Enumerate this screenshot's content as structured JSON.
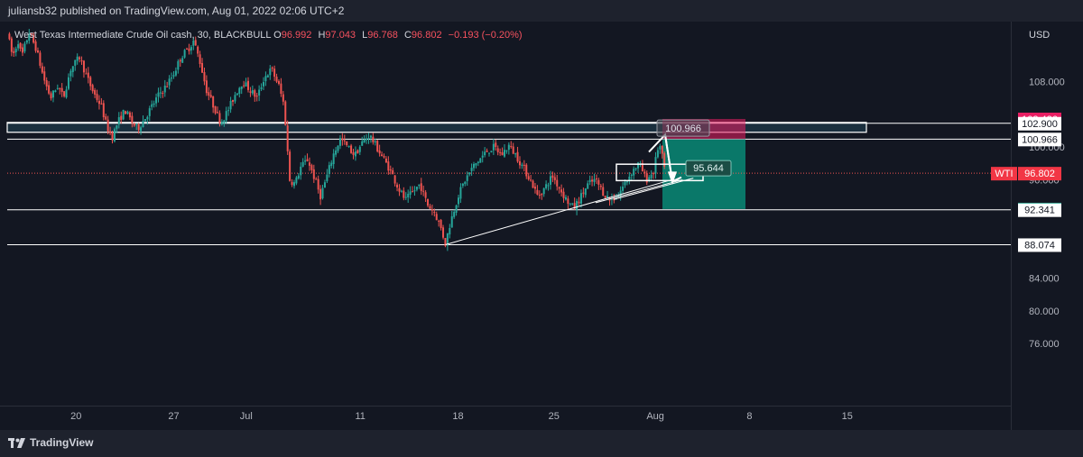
{
  "header": {
    "published": "juliansb32 published on TradingView.com, Aug 01, 2022 02:06 UTC+2"
  },
  "legend": {
    "symbol": "West Texas Intermediate Crude Oil cash, 30, BLACKBULL",
    "o_label": "O",
    "o_value": "96.992",
    "h_label": "H",
    "h_value": "97.043",
    "l_label": "L",
    "l_value": "96.768",
    "c_label": "C",
    "c_value": "96.802",
    "change": "−0.193 (−0.20%)"
  },
  "axis": {
    "currency": "USD"
  },
  "footer": {
    "brand": "TradingView"
  },
  "colors": {
    "up": "#26a69a",
    "down": "#ef5350",
    "bg": "#131722",
    "stop_zone": "#e91e63",
    "target_zone": "#089981",
    "zone_band": "#1e3a4a"
  },
  "chart_data": {
    "type": "candlestick",
    "symbol": "WTI",
    "timeframe": "30",
    "x_ticks": [
      "20",
      "27",
      "Jul",
      "11",
      "18",
      "25",
      "Aug",
      "8",
      "15"
    ],
    "y_ticks": [
      "76.000",
      "80.000",
      "84.000",
      "96.000",
      "100.000",
      "108.000"
    ],
    "ylim": [
      73.5,
      114
    ],
    "horizontal_levels": [
      102.9,
      100.966,
      92.341,
      88.074
    ],
    "zone": [
      101.8,
      103.0
    ],
    "price_tags": [
      {
        "value": "103.426",
        "style": "pink"
      },
      {
        "value": "102.900",
        "style": "white"
      },
      {
        "value": "101.023",
        "style": "dark"
      },
      {
        "value": "100.966",
        "style": "white"
      },
      {
        "value": "96.802",
        "style": "red",
        "name": "WTI"
      },
      {
        "value": "92.425",
        "style": "green"
      },
      {
        "value": "92.341",
        "style": "white"
      },
      {
        "value": "88.074",
        "style": "white"
      }
    ],
    "annotations": [
      "100.966",
      "95.644"
    ],
    "position": {
      "entry": 100.966,
      "stop": 103.426,
      "target": 92.425
    },
    "trendline": [
      [
        88.074,
        96.0
      ]
    ],
    "price_path": [
      [
        0,
        114
      ],
      [
        0.3,
        111
      ],
      [
        0.6,
        113
      ],
      [
        0.8,
        111
      ],
      [
        1.2,
        114
      ],
      [
        1.6,
        112
      ],
      [
        2,
        108.5
      ],
      [
        2.4,
        106
      ],
      [
        2.8,
        107.5
      ],
      [
        3.1,
        106
      ],
      [
        3.5,
        109.5
      ],
      [
        4,
        111
      ],
      [
        4.4,
        108.5
      ],
      [
        4.8,
        106.5
      ],
      [
        5.2,
        105
      ],
      [
        5.5,
        102.5
      ],
      [
        5.8,
        101.2
      ],
      [
        6.1,
        103
      ],
      [
        6.5,
        104.5
      ],
      [
        6.9,
        103
      ],
      [
        7.2,
        102.2
      ],
      [
        7.6,
        103.5
      ],
      [
        8,
        105
      ],
      [
        8.4,
        106.5
      ],
      [
        8.8,
        107.5
      ],
      [
        9.2,
        109
      ],
      [
        9.6,
        111
      ],
      [
        10,
        112
      ],
      [
        10.3,
        113
      ],
      [
        10.7,
        110
      ],
      [
        11,
        107
      ],
      [
        11.4,
        105
      ],
      [
        11.8,
        103
      ],
      [
        12.2,
        104.5
      ],
      [
        12.6,
        106.5
      ],
      [
        13,
        108
      ],
      [
        13.4,
        107
      ],
      [
        13.8,
        106
      ],
      [
        14.2,
        108.5
      ],
      [
        14.6,
        109.5
      ],
      [
        15,
        107.5
      ],
      [
        15.3,
        105
      ],
      [
        15.6,
        96
      ],
      [
        15.9,
        95.5
      ],
      [
        16.2,
        97.5
      ],
      [
        16.6,
        98.5
      ],
      [
        17,
        96
      ],
      [
        17.3,
        94
      ],
      [
        17.6,
        96
      ],
      [
        18,
        99
      ],
      [
        18.4,
        101
      ],
      [
        18.8,
        100
      ],
      [
        19.2,
        99
      ],
      [
        19.6,
        100.5
      ],
      [
        20,
        101.5
      ],
      [
        20.4,
        100
      ],
      [
        20.8,
        98.5
      ],
      [
        21.2,
        97
      ],
      [
        21.6,
        95
      ],
      [
        22,
        93.5
      ],
      [
        22.4,
        94.5
      ],
      [
        22.8,
        95.5
      ],
      [
        23.2,
        93
      ],
      [
        23.6,
        92
      ],
      [
        23.9,
        90.5
      ],
      [
        24.2,
        88.2
      ],
      [
        24.5,
        91
      ],
      [
        24.9,
        94
      ],
      [
        25.3,
        96
      ],
      [
        25.7,
        97.5
      ],
      [
        26.1,
        98.5
      ],
      [
        26.5,
        99.5
      ],
      [
        26.9,
        100
      ],
      [
        27.3,
        99
      ],
      [
        27.7,
        100.2
      ],
      [
        28.1,
        99
      ],
      [
        28.5,
        97.5
      ],
      [
        28.9,
        96
      ],
      [
        29.3,
        94
      ],
      [
        29.7,
        95
      ],
      [
        30.1,
        96.5
      ],
      [
        30.5,
        95
      ],
      [
        30.9,
        93.5
      ],
      [
        31.3,
        92.5
      ],
      [
        31.7,
        94
      ],
      [
        32.1,
        95.5
      ],
      [
        32.5,
        96
      ],
      [
        32.9,
        94.5
      ],
      [
        33.3,
        93.5
      ],
      [
        33.7,
        94
      ],
      [
        34.1,
        95.5
      ],
      [
        34.5,
        97
      ],
      [
        34.9,
        98
      ],
      [
        35.3,
        96
      ],
      [
        35.7,
        97
      ],
      [
        36,
        100.6
      ],
      [
        36.3,
        97.5
      ]
    ]
  }
}
